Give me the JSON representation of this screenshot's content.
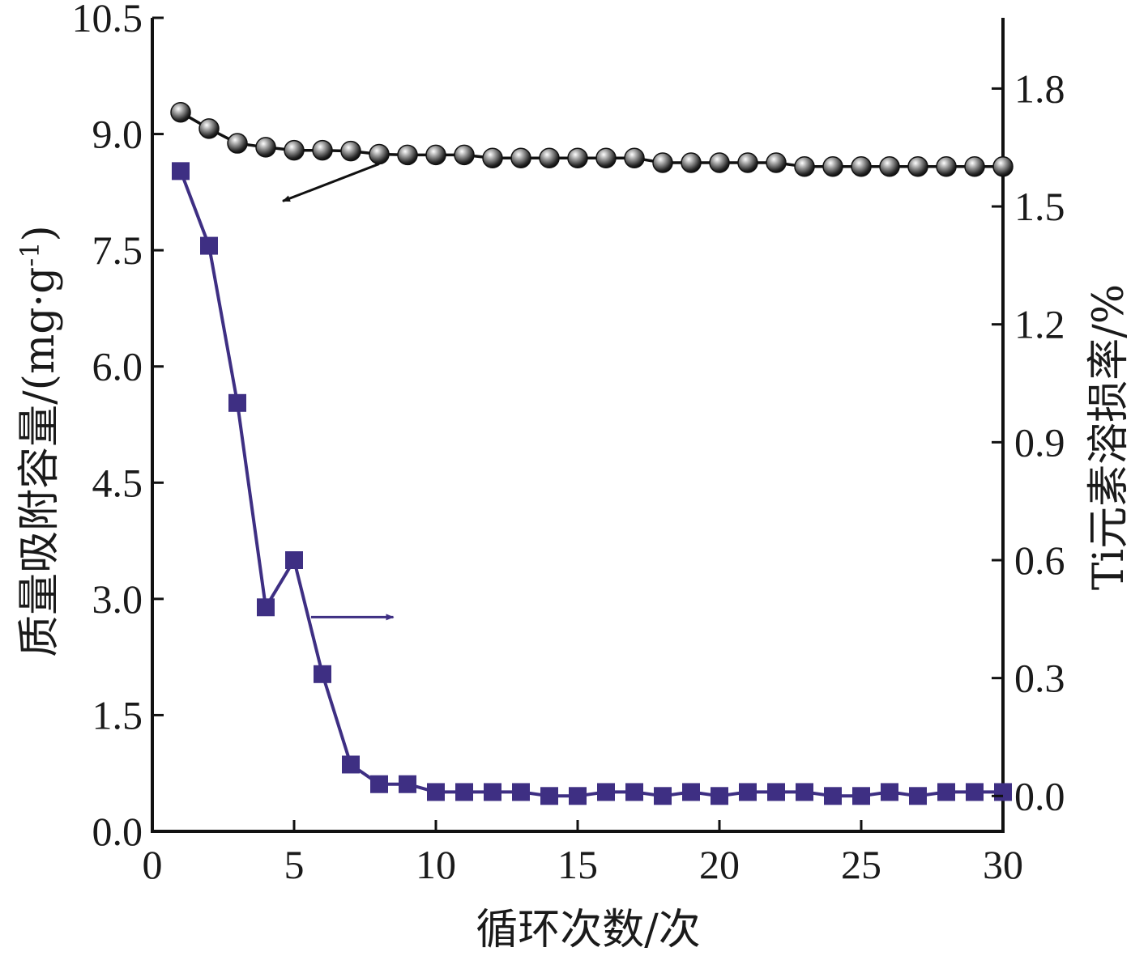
{
  "chart_data": {
    "type": "line",
    "xlabel": "循环次数/次",
    "ylabel_left": "质量吸附容量/(mg·g",
    "ylabel_left_sup": "-1",
    "ylabel_left_close": ")",
    "ylabel_right": "Ti元素溶损率/%",
    "xlim": [
      0,
      30
    ],
    "ylim_left": [
      0,
      10.5
    ],
    "ylim_right": [
      -0.09,
      1.98
    ],
    "x_ticks": [
      "0",
      "5",
      "10",
      "15",
      "20",
      "25",
      "30"
    ],
    "y_left_ticks": [
      "0.0",
      "1.5",
      "3.0",
      "4.5",
      "6.0",
      "7.5",
      "9.0",
      "10.5"
    ],
    "y_right_ticks": [
      "0.0",
      "0.3",
      "0.6",
      "0.9",
      "1.2",
      "1.5",
      "1.8"
    ],
    "grid": false,
    "x": [
      1,
      2,
      3,
      4,
      5,
      6,
      7,
      8,
      9,
      10,
      11,
      12,
      13,
      14,
      15,
      16,
      17,
      18,
      19,
      20,
      21,
      22,
      23,
      24,
      25,
      26,
      27,
      28,
      29,
      30
    ],
    "series": [
      {
        "axis": "left",
        "marker": "sphere",
        "color": "#111111",
        "values": [
          9.28,
          9.07,
          8.88,
          8.83,
          8.79,
          8.79,
          8.78,
          8.74,
          8.73,
          8.73,
          8.73,
          8.69,
          8.69,
          8.69,
          8.69,
          8.69,
          8.69,
          8.63,
          8.63,
          8.63,
          8.63,
          8.63,
          8.58,
          8.58,
          8.58,
          8.58,
          8.58,
          8.58,
          8.58,
          8.58
        ]
      },
      {
        "axis": "right",
        "marker": "square",
        "color": "#3e2f83",
        "values": [
          1.59,
          1.4,
          1.0,
          0.48,
          0.6,
          0.31,
          0.08,
          0.03,
          0.03,
          0.01,
          0.01,
          0.01,
          0.01,
          0.0,
          0.0,
          0.01,
          0.01,
          0.0,
          0.01,
          0.0,
          0.01,
          0.01,
          0.01,
          0.0,
          0.0,
          0.01,
          0.0,
          0.01,
          0.01,
          0.01
        ]
      }
    ]
  }
}
